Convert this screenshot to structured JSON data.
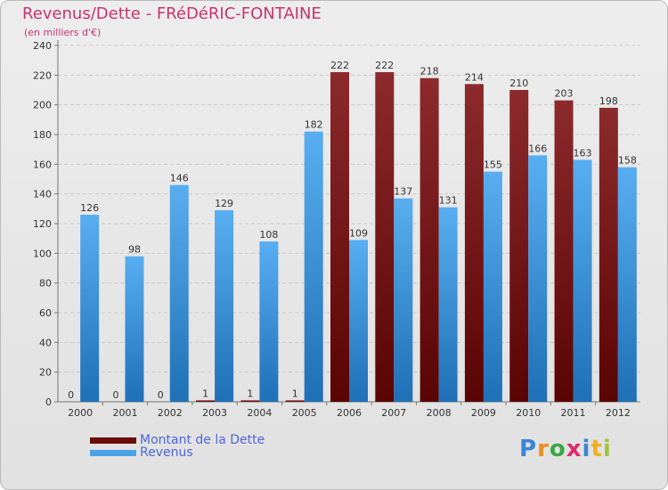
{
  "chart_data": {
    "type": "bar",
    "title": "Revenus/Dette - FRéDéRIC-FONTAINE",
    "subtitle": "(en milliers d'€)",
    "categories": [
      "2000",
      "2001",
      "2002",
      "2003",
      "2004",
      "2005",
      "2006",
      "2007",
      "2008",
      "2009",
      "2010",
      "2011",
      "2012"
    ],
    "series": [
      {
        "name": "Montant de la Dette",
        "color": "#7a1a1a",
        "values": [
          0,
          0,
          0,
          1,
          1,
          1,
          222,
          222,
          218,
          214,
          210,
          203,
          198
        ]
      },
      {
        "name": "Revenus",
        "color": "#4aa3e6",
        "values": [
          126,
          98,
          146,
          129,
          108,
          182,
          109,
          137,
          131,
          155,
          166,
          163,
          158
        ]
      }
    ],
    "ylim": [
      0,
      240
    ],
    "yticks": [
      0,
      20,
      40,
      60,
      80,
      100,
      120,
      140,
      160,
      180,
      200,
      220,
      240
    ],
    "grid": true,
    "legend": "bottom-left"
  },
  "logo": {
    "letters": [
      "P",
      "r",
      "o",
      "x",
      "i",
      "t",
      "i"
    ],
    "colors": [
      "#3a86d8",
      "#f28c1e",
      "#3aa845",
      "#e02a6a",
      "#3a86d8",
      "#f2b01e",
      "#9fc83a"
    ]
  }
}
